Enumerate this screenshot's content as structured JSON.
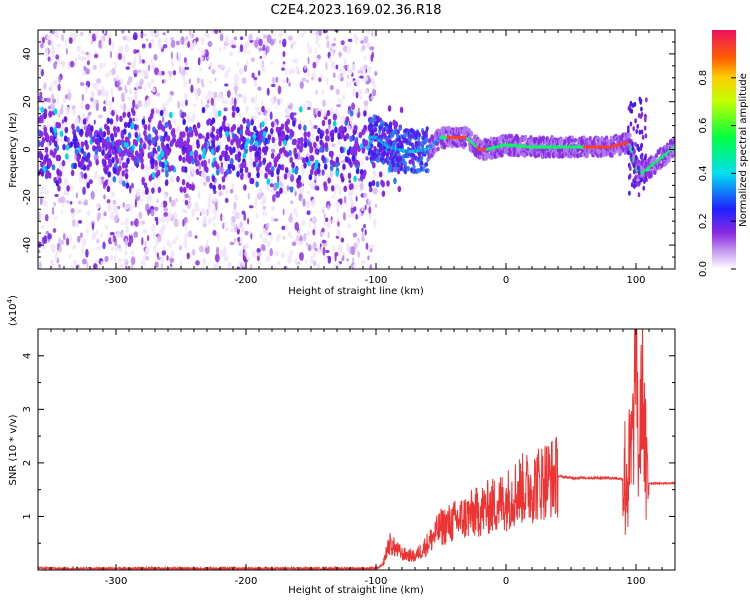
{
  "figure": {
    "title": "C2E4.2023.169.02.36.R18"
  },
  "chart_data": [
    {
      "type": "heatmap",
      "xlabel": "Height of straight line (km)",
      "ylabel": "Frequency (Hz)",
      "xlim": [
        -360,
        130
      ],
      "ylim": [
        -50,
        50
      ],
      "xticks": [
        -300,
        -200,
        -100,
        0,
        100
      ],
      "yticks": [
        -40,
        -20,
        0,
        20,
        40
      ],
      "colorbar": {
        "label": "Normalized spectral amplitude",
        "range": [
          0,
          1
        ],
        "ticks": [
          0.0,
          0.2,
          0.4,
          0.6,
          0.8
        ],
        "tick_labels": [
          "0.0",
          "0.2",
          "0.4",
          "0.6",
          "0.8"
        ]
      },
      "ridge": {
        "description_x": [
          -100,
          -90,
          -75,
          -60,
          -50,
          -30,
          -20,
          -15,
          0,
          20,
          50,
          80,
          95,
          100,
          105,
          130
        ],
        "frequency_hz": [
          5,
          1,
          -1,
          0,
          5,
          5,
          0,
          0,
          2,
          1,
          1,
          1,
          3,
          -8,
          -10,
          1
        ]
      }
    },
    {
      "type": "line",
      "xlabel": "Height of straight line (km)",
      "ylabel": "SNR (10 * v/v)",
      "y_multiplier": "(x10",
      "y_multiplier_exp": "4",
      "y_multiplier_close": ")",
      "xlim": [
        -360,
        130
      ],
      "ylim": [
        0,
        4.5
      ],
      "xticks": [
        -300,
        -200,
        -100,
        0,
        100
      ],
      "yticks": [
        1,
        2,
        3,
        4
      ],
      "series": [
        {
          "color": "#ee3333",
          "x": [
            -360,
            -100,
            -95,
            -90,
            -85,
            -80,
            -70,
            -60,
            -50,
            -40,
            -30,
            -20,
            -10,
            0,
            10,
            20,
            30,
            40,
            50,
            60,
            70,
            80,
            90,
            95,
            98,
            100,
            102,
            105,
            108,
            110,
            130
          ],
          "y": [
            0.03,
            0.03,
            0.08,
            0.5,
            0.4,
            0.3,
            0.25,
            0.5,
            0.8,
            0.9,
            1.0,
            1.1,
            1.2,
            1.3,
            1.5,
            1.55,
            1.7,
            1.75,
            1.72,
            1.72,
            1.72,
            1.72,
            1.7,
            1.8,
            2.5,
            4.5,
            2.0,
            3.6,
            1.5,
            1.62,
            1.62
          ]
        }
      ]
    }
  ]
}
